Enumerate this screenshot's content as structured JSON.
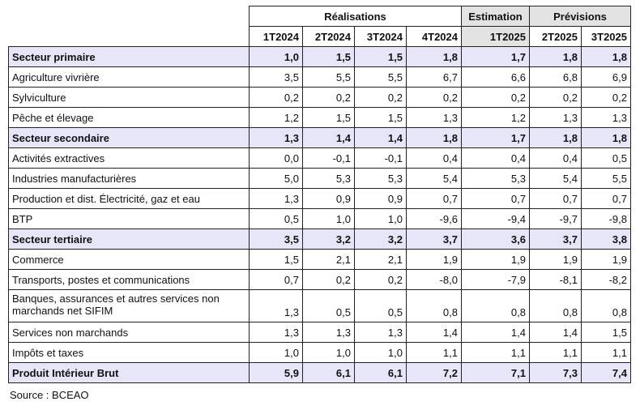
{
  "header": {
    "groups": [
      {
        "label": "Réalisations",
        "span": 4
      },
      {
        "label": "Estimation",
        "span": 1
      },
      {
        "label": "Prévisions",
        "span": 2
      }
    ],
    "periods": [
      "1T2024",
      "2T2024",
      "3T2024",
      "4T2024",
      "1T2025",
      "2T2025",
      "3T2025"
    ]
  },
  "rows": [
    {
      "label": "Secteur primaire",
      "sector": true,
      "values": [
        "1,0",
        "1,5",
        "1,5",
        "1,8",
        "1,7",
        "1,8",
        "1,8"
      ]
    },
    {
      "label": "Agriculture vivrière",
      "values": [
        "3,5",
        "5,5",
        "5,5",
        "6,7",
        "6,6",
        "6,8",
        "6,9"
      ]
    },
    {
      "label": "Sylviculture",
      "values": [
        "0,2",
        "0,2",
        "0,2",
        "0,2",
        "0,2",
        "0,2",
        "0,2"
      ]
    },
    {
      "label": "Pêche et élevage",
      "values": [
        "1,2",
        "1,5",
        "1,5",
        "1,3",
        "1,2",
        "1,3",
        "1,3"
      ]
    },
    {
      "label": "Secteur secondaire",
      "sector": true,
      "values": [
        "1,3",
        "1,4",
        "1,4",
        "1,8",
        "1,7",
        "1,8",
        "1,8"
      ]
    },
    {
      "label": "Activités extractives",
      "values": [
        "0,0",
        "-0,1",
        "-0,1",
        "0,4",
        "0,4",
        "0,4",
        "0,5"
      ]
    },
    {
      "label": "Industries manufacturières",
      "values": [
        "5,0",
        "5,3",
        "5,3",
        "5,4",
        "5,3",
        "5,4",
        "5,5"
      ]
    },
    {
      "label": "Production et dist. Électricité, gaz et eau",
      "values": [
        "1,3",
        "0,9",
        "0,9",
        "0,7",
        "0,7",
        "0,7",
        "0,7"
      ]
    },
    {
      "label": "BTP",
      "values": [
        "0,5",
        "1,0",
        "1,0",
        "-9,6",
        "-9,4",
        "-9,7",
        "-9,8"
      ]
    },
    {
      "label": "Secteur tertiaire",
      "sector": true,
      "values": [
        "3,5",
        "3,2",
        "3,2",
        "3,7",
        "3,6",
        "3,7",
        "3,8"
      ]
    },
    {
      "label": "Commerce",
      "values": [
        "1,5",
        "2,1",
        "2,1",
        "1,9",
        "1,9",
        "1,9",
        "1,9"
      ]
    },
    {
      "label": "Transports, postes et communications",
      "values": [
        "0,7",
        "0,2",
        "0,2",
        "-8,0",
        "-7,9",
        "-8,1",
        "-8,2"
      ]
    },
    {
      "label": "Banques, assurances et autres services non marchands net SIFIM",
      "tall": true,
      "values": [
        "1,3",
        "0,5",
        "0,5",
        "0,8",
        "0,8",
        "0,8",
        "0,8"
      ]
    },
    {
      "label": "Services non marchands",
      "values": [
        "1,3",
        "1,3",
        "1,3",
        "1,4",
        "1,4",
        "1,4",
        "1,5"
      ]
    },
    {
      "label": "Impôts et taxes",
      "values": [
        "1,0",
        "1,0",
        "1,0",
        "1,1",
        "1,1",
        "1,1",
        "1,1"
      ]
    },
    {
      "label": "Produit Intérieur Brut",
      "sector": true,
      "values": [
        "5,9",
        "6,1",
        "6,1",
        "7,2",
        "7,1",
        "7,3",
        "7,4"
      ]
    }
  ],
  "source": "Source : BCEAO"
}
